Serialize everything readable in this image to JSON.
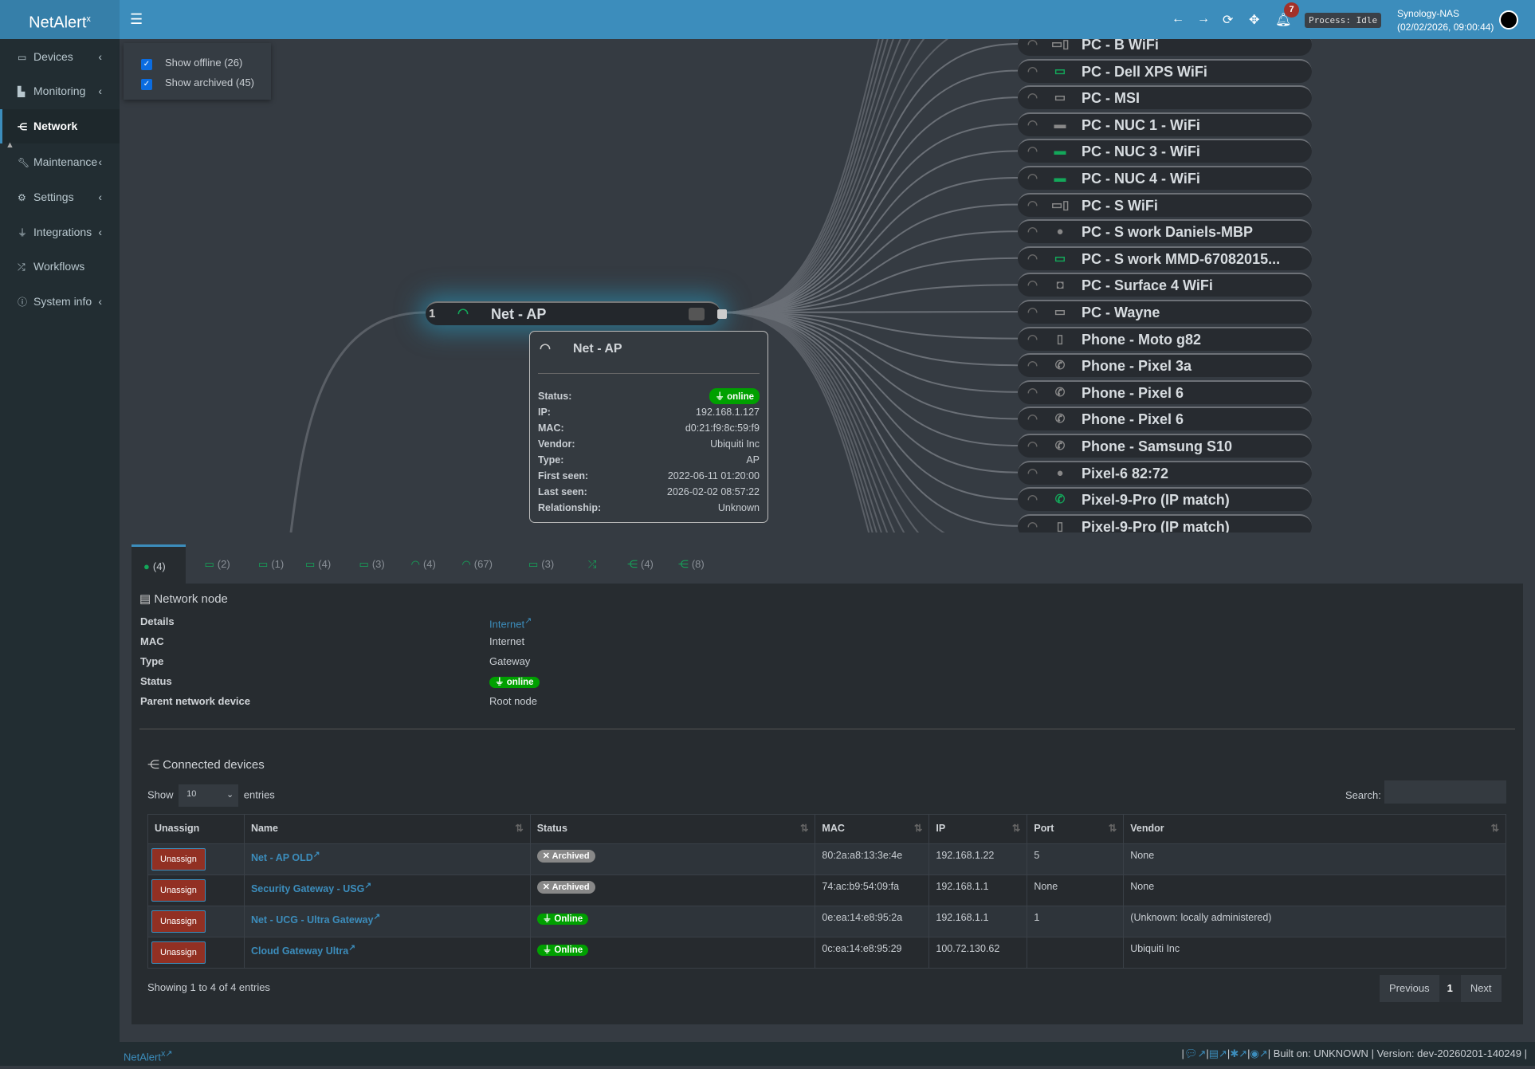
{
  "app": {
    "logo": "NetAlert",
    "logo_sup": "x"
  },
  "header": {
    "notifications": "7",
    "process": "Process: Idle",
    "host": "Synology-NAS",
    "datetime": "(02/02/2026, 09:00:44)"
  },
  "sidebar": {
    "items": [
      {
        "label": "Devices",
        "icon": "laptop-icon",
        "chevron": true
      },
      {
        "label": "Monitoring",
        "icon": "chart-icon",
        "chevron": true
      },
      {
        "label": "Network",
        "icon": "sitemap-icon",
        "active": true
      },
      {
        "label": "Maintenance",
        "icon": "wrench-icon",
        "chevron": true
      },
      {
        "label": "Settings",
        "icon": "gear-icon",
        "chevron": true
      },
      {
        "label": "Integrations",
        "icon": "plug-icon",
        "chevron": true
      },
      {
        "label": "Workflows",
        "icon": "shuffle-icon"
      },
      {
        "label": "System info",
        "icon": "info-icon",
        "chevron": true
      }
    ]
  },
  "filters": {
    "show_offline": "Show offline (26)",
    "show_archived": "Show archived (45)"
  },
  "tree": {
    "focused_node": {
      "badge": "1",
      "name": "Net - AP"
    },
    "devices": [
      {
        "name": "PC - B WiFi",
        "icon": "desktop-tower-icon",
        "color": "#888"
      },
      {
        "name": "PC - Dell XPS WiFi",
        "icon": "monitor-icon",
        "color": "#13a85a"
      },
      {
        "name": "PC - MSI",
        "icon": "monitor-icon",
        "color": "#888"
      },
      {
        "name": "PC - NUC 1 - WiFi",
        "icon": "mini-pc-icon",
        "color": "#888"
      },
      {
        "name": "PC - NUC 3 - WiFi",
        "icon": "mini-pc-icon",
        "color": "#13a85a"
      },
      {
        "name": "PC - NUC 4 - WiFi",
        "icon": "mini-pc-icon",
        "color": "#13a85a"
      },
      {
        "name": "PC - S WiFi",
        "icon": "desktop-tower-icon",
        "color": "#888"
      },
      {
        "name": "PC - S work Daniels-MBP",
        "icon": "apple-icon",
        "color": "#888"
      },
      {
        "name": "PC - S work MMD-67082015...",
        "icon": "monitor-icon",
        "color": "#13a85a"
      },
      {
        "name": "PC - Surface 4 WiFi",
        "icon": "gamepad-icon",
        "color": "#888"
      },
      {
        "name": "PC - Wayne",
        "icon": "monitor-icon",
        "color": "#888"
      },
      {
        "name": "Phone - Moto g82",
        "icon": "mobile-icon",
        "color": "#888"
      },
      {
        "name": "Phone - Pixel 3a",
        "icon": "phone-icon",
        "color": "#888"
      },
      {
        "name": "Phone - Pixel 6",
        "icon": "phone-icon",
        "color": "#888"
      },
      {
        "name": "Phone - Pixel 6",
        "icon": "phone-icon",
        "color": "#888"
      },
      {
        "name": "Phone - Samsung S10",
        "icon": "phone-icon",
        "color": "#888"
      },
      {
        "name": "Pixel-6 82:72",
        "icon": "apple-icon",
        "color": "#888"
      },
      {
        "name": "Pixel-9-Pro (IP match)",
        "icon": "phone-icon",
        "color": "#13a85a"
      },
      {
        "name": "Pixel-9-Pro (IP match)",
        "icon": "mobile-icon",
        "color": "#888"
      }
    ]
  },
  "tooltip": {
    "name": "Net - AP",
    "rows": [
      {
        "label": "Status:",
        "value": "online",
        "badge": true
      },
      {
        "label": "IP:",
        "value": "192.168.1.127"
      },
      {
        "label": "MAC:",
        "value": "d0:21:f9:8c:59:f9"
      },
      {
        "label": "Vendor:",
        "value": "Ubiquiti Inc"
      },
      {
        "label": "Type:",
        "value": "AP"
      },
      {
        "label": "First seen:",
        "value": "2022-06-11 01:20:00"
      },
      {
        "label": "Last seen:",
        "value": "2026-02-02 08:57:22"
      },
      {
        "label": "Relationship:",
        "value": "Unknown"
      }
    ]
  },
  "tabs": [
    {
      "icon": "globe-icon",
      "count": "(4)",
      "active": true
    },
    {
      "icon": "router-icon",
      "count": "(2)"
    },
    {
      "icon": "router-icon",
      "count": "(1)"
    },
    {
      "icon": "router-icon",
      "count": "(4)"
    },
    {
      "icon": "router-icon",
      "count": "(3)"
    },
    {
      "icon": "wifi-icon",
      "count": "(4)"
    },
    {
      "icon": "wifi-icon",
      "count": "(67)"
    },
    {
      "icon": "router-icon",
      "count": "(3)"
    },
    {
      "icon": "shuffle-icon",
      "count": ""
    },
    {
      "icon": "sitemap-icon",
      "count": "(4)"
    },
    {
      "icon": "sitemap-icon",
      "count": "(8)"
    }
  ],
  "node": {
    "title": "Network node",
    "rows": [
      {
        "label": "Details",
        "value": "Internet",
        "link": true
      },
      {
        "label": "MAC",
        "value": "Internet"
      },
      {
        "label": "Type",
        "value": "Gateway"
      },
      {
        "label": "Status",
        "value": "online",
        "badge": true
      },
      {
        "label": "Parent network device",
        "value": "Root node"
      }
    ]
  },
  "connected": {
    "title": "Connected devices",
    "show": "Show",
    "entries_value": "10",
    "entries": "entries",
    "search_label": "Search:",
    "search_value": "",
    "columns": [
      "Unassign",
      "Name",
      "Status",
      "MAC",
      "IP",
      "Port",
      "Vendor"
    ],
    "unassign_label": "Unassign",
    "rows": [
      {
        "name": "Net - AP OLD",
        "status": "Archived",
        "mac": "80:2a:a8:13:3e:4e",
        "ip": "192.168.1.22",
        "port": "5",
        "vendor": "None"
      },
      {
        "name": "Security Gateway - USG",
        "status": "Archived",
        "mac": "74:ac:b9:54:09:fa",
        "ip": "192.168.1.1",
        "port": "None",
        "vendor": "None"
      },
      {
        "name": "Net - UCG - Ultra Gateway",
        "status": "Online",
        "mac": "0e:ea:14:e8:95:2a",
        "ip": "192.168.1.1",
        "port": "1",
        "vendor": "(Unknown: locally administered)"
      },
      {
        "name": "Cloud Gateway Ultra",
        "status": "Online",
        "mac": "0c:ea:14:e8:95:29",
        "ip": "100.72.130.62",
        "port": "",
        "vendor": "Ubiquiti Inc"
      }
    ],
    "info": "Showing 1 to 4 of 4 entries",
    "prev": "Previous",
    "page": "1",
    "next": "Next"
  },
  "footer": {
    "brand": "NetAlert",
    "brand_sup": "x",
    "built": "Built on: UNKNOWN",
    "version": "Version: dev-20260201-140249"
  },
  "colors": {
    "header": "#3c8dbc",
    "sidebar": "#222d32",
    "online": "#00a000",
    "archived": "#888888",
    "accent_green": "#13a85a",
    "unassign": "#923023"
  }
}
